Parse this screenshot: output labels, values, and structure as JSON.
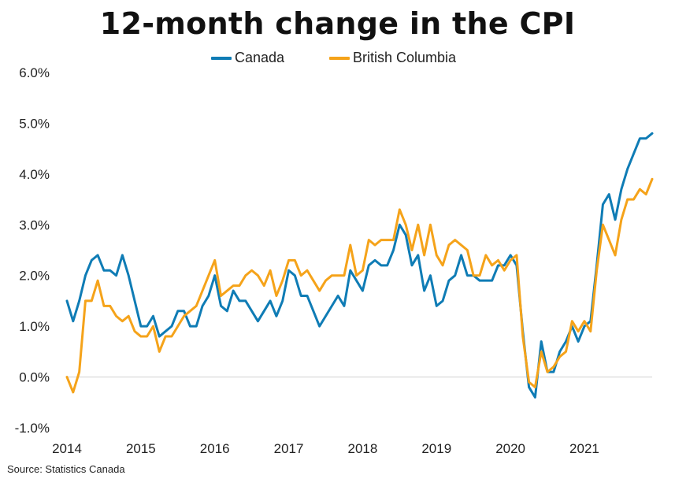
{
  "chart_data": {
    "type": "line",
    "title": "12-month change in the CPI",
    "source": "Source: Statistics Canada",
    "x_start": "2014-01",
    "x_end": "2021-12",
    "x_tick_labels": [
      "2014",
      "2015",
      "2016",
      "2017",
      "2018",
      "2019",
      "2020",
      "2021"
    ],
    "ylim": [
      -1.0,
      6.0
    ],
    "y_ticks": [
      -1.0,
      0.0,
      1.0,
      2.0,
      3.0,
      4.0,
      5.0,
      6.0
    ],
    "y_tick_labels": [
      "-1.0%",
      "0.0%",
      "1.0%",
      "2.0%",
      "3.0%",
      "4.0%",
      "5.0%",
      "6.0%"
    ],
    "legend_position": "top-center",
    "series": [
      {
        "name": "Canada",
        "color": "#0f7cb5",
        "values": [
          1.5,
          1.1,
          1.5,
          2.0,
          2.3,
          2.4,
          2.1,
          2.1,
          2.0,
          2.4,
          2.0,
          1.5,
          1.0,
          1.0,
          1.2,
          0.8,
          0.9,
          1.0,
          1.3,
          1.3,
          1.0,
          1.0,
          1.4,
          1.6,
          2.0,
          1.4,
          1.3,
          1.7,
          1.5,
          1.5,
          1.3,
          1.1,
          1.3,
          1.5,
          1.2,
          1.5,
          2.1,
          2.0,
          1.6,
          1.6,
          1.3,
          1.0,
          1.2,
          1.4,
          1.6,
          1.4,
          2.1,
          1.9,
          1.7,
          2.2,
          2.3,
          2.2,
          2.2,
          2.5,
          3.0,
          2.8,
          2.2,
          2.4,
          1.7,
          2.0,
          1.4,
          1.5,
          1.9,
          2.0,
          2.4,
          2.0,
          2.0,
          1.9,
          1.9,
          1.9,
          2.2,
          2.2,
          2.4,
          2.2,
          0.9,
          -0.2,
          -0.4,
          0.7,
          0.1,
          0.1,
          0.5,
          0.7,
          1.0,
          0.7,
          1.0,
          1.1,
          2.2,
          3.4,
          3.6,
          3.1,
          3.7,
          4.1,
          4.4,
          4.7,
          4.7,
          4.8
        ]
      },
      {
        "name": "British Columbia",
        "color": "#f5a31a",
        "values": [
          0.0,
          -0.3,
          0.1,
          1.5,
          1.5,
          1.9,
          1.4,
          1.4,
          1.2,
          1.1,
          1.2,
          0.9,
          0.8,
          0.8,
          1.0,
          0.5,
          0.8,
          0.8,
          1.0,
          1.2,
          1.3,
          1.4,
          1.7,
          2.0,
          2.3,
          1.6,
          1.7,
          1.8,
          1.8,
          2.0,
          2.1,
          2.0,
          1.8,
          2.1,
          1.6,
          1.9,
          2.3,
          2.3,
          2.0,
          2.1,
          1.9,
          1.7,
          1.9,
          2.0,
          2.0,
          2.0,
          2.6,
          2.0,
          2.1,
          2.7,
          2.6,
          2.7,
          2.7,
          2.7,
          3.3,
          3.0,
          2.5,
          3.0,
          2.4,
          3.0,
          2.4,
          2.2,
          2.6,
          2.7,
          2.6,
          2.5,
          2.0,
          2.0,
          2.4,
          2.2,
          2.3,
          2.1,
          2.3,
          2.4,
          0.8,
          -0.1,
          -0.2,
          0.5,
          0.1,
          0.2,
          0.4,
          0.5,
          1.1,
          0.9,
          1.1,
          0.9,
          2.1,
          3.0,
          2.7,
          2.4,
          3.1,
          3.5,
          3.5,
          3.7,
          3.6,
          3.9
        ]
      }
    ]
  }
}
